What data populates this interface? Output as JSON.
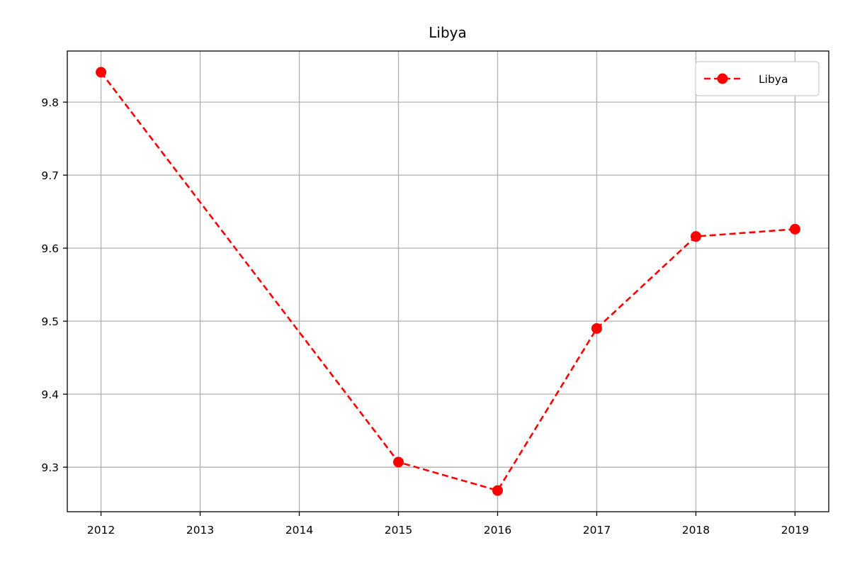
{
  "chart_data": {
    "type": "line",
    "title": "Libya",
    "xlabel": "",
    "ylabel": "",
    "x": [
      2012,
      2015,
      2016,
      2017,
      2018,
      2019
    ],
    "x_ticks": [
      "2012",
      "2013",
      "2014",
      "2015",
      "2016",
      "2017",
      "2018",
      "2019"
    ],
    "y_ticks": [
      "9.3",
      "9.4",
      "9.5",
      "9.6",
      "9.7",
      "9.8"
    ],
    "xlim": [
      2011.66,
      2019.34
    ],
    "ylim": [
      9.239,
      9.87
    ],
    "grid": true,
    "legend_position": "top-right",
    "series": [
      {
        "name": "Libya",
        "values": [
          9.841,
          9.307,
          9.268,
          9.49,
          9.616,
          9.626
        ],
        "color": "#ff0000",
        "line_style": "dashed",
        "marker": "circle"
      }
    ]
  }
}
